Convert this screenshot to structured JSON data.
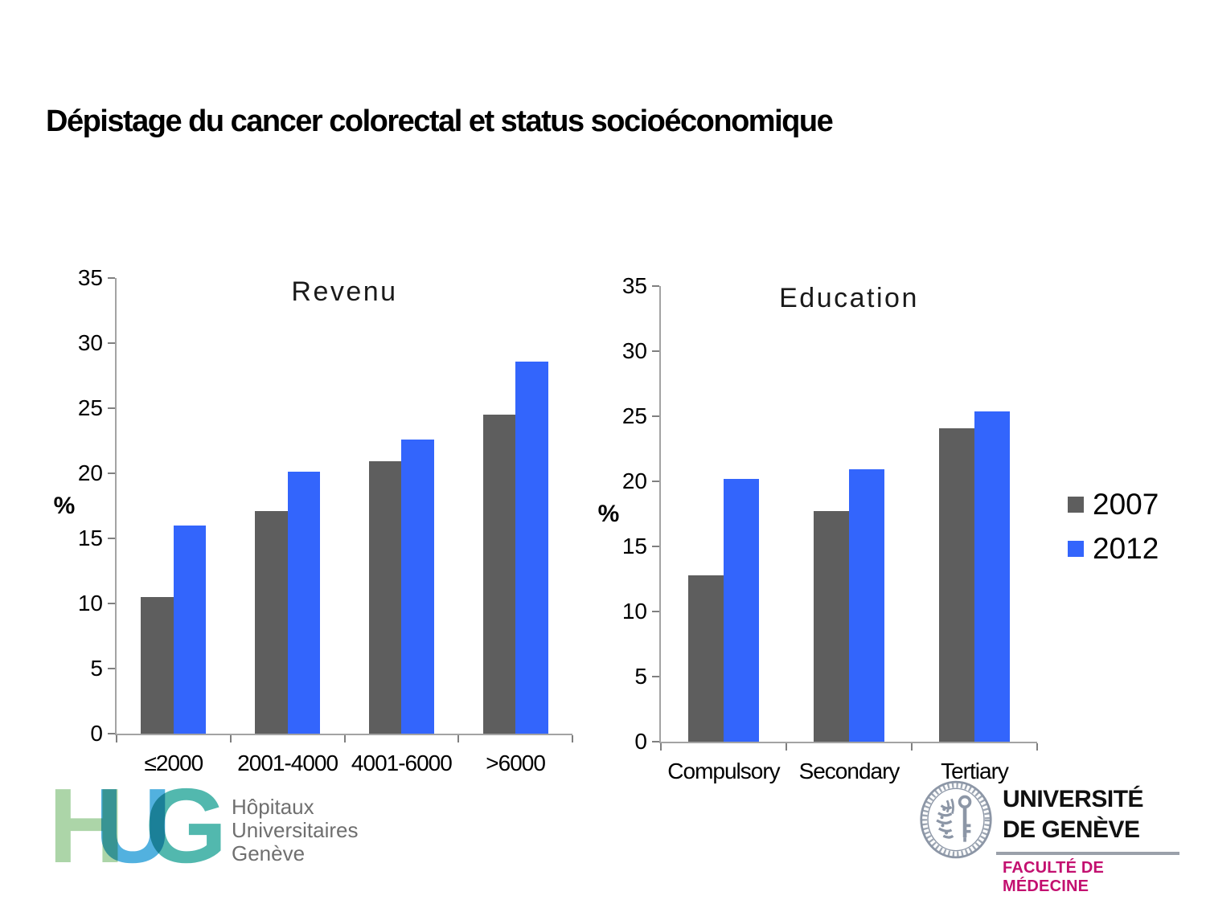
{
  "title": "Dépistage du cancer colorectal et status socioéconomique",
  "chart_data": [
    {
      "type": "bar",
      "title": "Revenu",
      "categories": [
        "≤2000",
        "2001-4000",
        "4001-6000",
        ">6000"
      ],
      "series": [
        {
          "name": "2007",
          "color": "#5E5E5E",
          "values": [
            10.5,
            17.1,
            20.9,
            24.5
          ]
        },
        {
          "name": "2012",
          "color": "#3365FC",
          "values": [
            16.0,
            20.1,
            22.6,
            28.6
          ]
        }
      ],
      "ylabel": "%",
      "ylim": [
        0,
        35
      ],
      "ytick_step": 5,
      "grid": false,
      "legend_position": "shared-right"
    },
    {
      "type": "bar",
      "title": "Education",
      "categories": [
        "Compulsory",
        "Secondary",
        "Tertiary"
      ],
      "series": [
        {
          "name": "2007",
          "color": "#5E5E5E",
          "values": [
            12.8,
            17.7,
            24.1
          ]
        },
        {
          "name": "2012",
          "color": "#3365FC",
          "values": [
            20.2,
            20.9,
            25.4
          ]
        }
      ],
      "ylabel": "%",
      "ylim": [
        0,
        35
      ],
      "ytick_step": 5,
      "grid": false,
      "legend_position": "shared-right"
    }
  ],
  "legend": {
    "items": [
      {
        "label": "2007",
        "color": "#5E5E5E"
      },
      {
        "label": "2012",
        "color": "#3365FC"
      }
    ]
  },
  "footer": {
    "hug": {
      "letters": [
        {
          "char": "H",
          "color": "#a5d2a1"
        },
        {
          "char": "U",
          "color": "#43aadd"
        },
        {
          "char": "G",
          "color": "#43b2a7"
        }
      ],
      "org_lines": [
        "Hôpitaux",
        "Universitaires",
        "Genève"
      ]
    },
    "unige": {
      "name_line1": "UNIVERSITÉ",
      "name_line2": "DE GENÈVE",
      "faculty": "FACULTÉ DE MÉDECINE",
      "faculty_color": "#C31070",
      "seal_color": "#8C96A6"
    }
  }
}
